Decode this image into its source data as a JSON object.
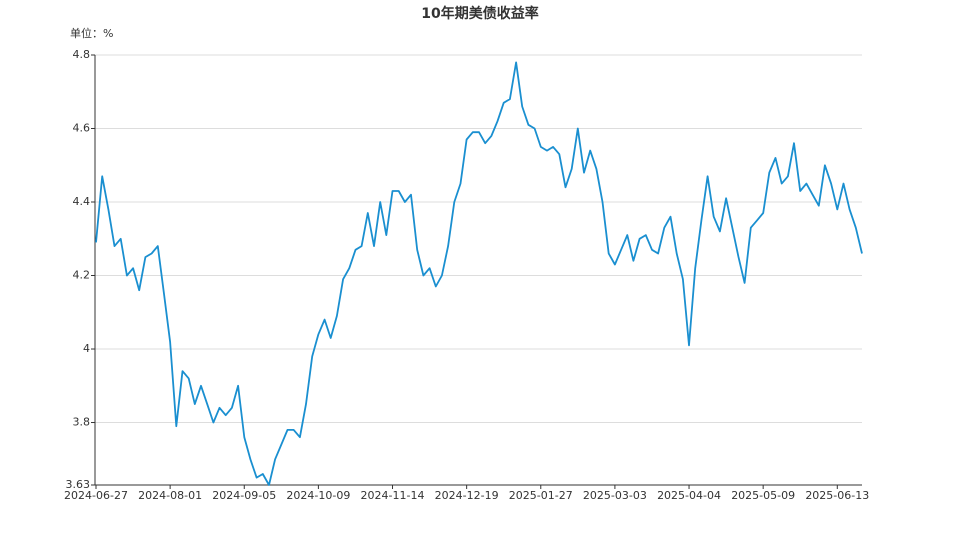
{
  "chart_data": {
    "type": "line",
    "title": "10年期美债收益率",
    "unit_label": "单位：%",
    "color": "#1a8fd0",
    "grid": true,
    "ylim": [
      3.63,
      4.8
    ],
    "yticks": [
      3.63,
      3.8,
      4,
      4.2,
      4.4,
      4.6,
      4.8
    ],
    "categories": [
      "2024-06-27",
      null,
      null,
      null,
      null,
      null,
      null,
      null,
      null,
      null,
      null,
      null,
      "2024-08-01",
      null,
      null,
      null,
      null,
      null,
      null,
      null,
      null,
      null,
      null,
      null,
      "2024-09-05",
      null,
      null,
      null,
      null,
      null,
      null,
      null,
      null,
      null,
      null,
      null,
      "2024-10-09",
      null,
      null,
      null,
      null,
      null,
      null,
      null,
      null,
      null,
      null,
      null,
      "2024-11-14",
      null,
      null,
      null,
      null,
      null,
      null,
      null,
      null,
      null,
      null,
      null,
      "2024-12-19",
      null,
      null,
      null,
      null,
      null,
      null,
      null,
      null,
      null,
      null,
      null,
      "2025-01-27",
      null,
      null,
      null,
      null,
      null,
      null,
      null,
      null,
      null,
      null,
      null,
      "2025-03-03",
      null,
      null,
      null,
      null,
      null,
      null,
      null,
      null,
      null,
      null,
      null,
      "2025-04-04",
      null,
      null,
      null,
      null,
      null,
      null,
      null,
      null,
      null,
      null,
      null,
      "2025-05-09",
      null,
      null,
      null,
      null,
      null,
      null,
      null,
      null,
      null,
      null,
      null,
      "2025-06-13",
      null,
      null,
      null,
      null
    ],
    "values": [
      4.29,
      4.47,
      4.38,
      4.28,
      4.3,
      4.2,
      4.22,
      4.16,
      4.25,
      4.26,
      4.28,
      4.15,
      4.02,
      3.79,
      3.94,
      3.92,
      3.85,
      3.9,
      3.85,
      3.8,
      3.84,
      3.82,
      3.84,
      3.9,
      3.76,
      3.7,
      3.65,
      3.66,
      3.63,
      3.7,
      3.74,
      3.78,
      3.78,
      3.76,
      3.85,
      3.98,
      4.04,
      4.08,
      4.03,
      4.09,
      4.19,
      4.22,
      4.27,
      4.28,
      4.37,
      4.28,
      4.4,
      4.31,
      4.43,
      4.43,
      4.4,
      4.42,
      4.27,
      4.2,
      4.22,
      4.17,
      4.2,
      4.28,
      4.4,
      4.45,
      4.57,
      4.59,
      4.59,
      4.56,
      4.58,
      4.62,
      4.67,
      4.68,
      4.78,
      4.66,
      4.61,
      4.6,
      4.55,
      4.54,
      4.55,
      4.53,
      4.44,
      4.49,
      4.6,
      4.48,
      4.54,
      4.49,
      4.4,
      4.26,
      4.23,
      4.27,
      4.31,
      4.24,
      4.3,
      4.31,
      4.27,
      4.26,
      4.33,
      4.36,
      4.26,
      4.19,
      4.01,
      4.22,
      4.35,
      4.47,
      4.36,
      4.32,
      4.41,
      4.33,
      4.25,
      4.18,
      4.33,
      4.35,
      4.37,
      4.48,
      4.52,
      4.45,
      4.47,
      4.56,
      4.43,
      4.45,
      4.42,
      4.39,
      4.5,
      4.45,
      4.38,
      4.45,
      4.38,
      4.33,
      4.26
    ]
  }
}
